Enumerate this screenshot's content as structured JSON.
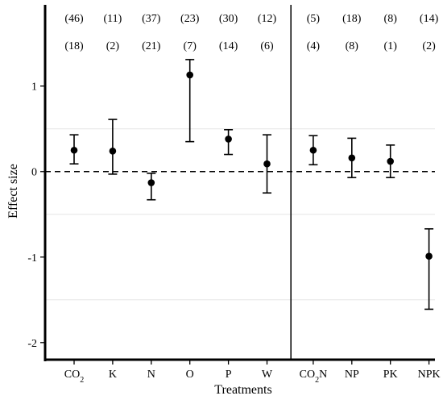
{
  "chart_data": {
    "type": "scatter",
    "subtype": "point-with-error-bars",
    "xlabel": "Treatments",
    "ylabel": "Effect size",
    "ylim": [
      -2.2,
      1.95
    ],
    "yticks": [
      -2,
      -1,
      0,
      1
    ],
    "ytick_labels": [
      "-2",
      "-1",
      "0",
      "1"
    ],
    "reference_line": {
      "y": 0,
      "style": "dashed"
    },
    "grid": {
      "horizontal_minor": true,
      "vertical": false
    },
    "panels": [
      "single-factor",
      "combined"
    ],
    "categories": [
      {
        "label": "CO",
        "sub": "2",
        "suffix": "",
        "panel": 0,
        "estimate": 0.25,
        "lower": 0.09,
        "upper": 0.43,
        "count_top": "(46)",
        "count_bottom": "(18)"
      },
      {
        "label": "K",
        "sub": "",
        "suffix": "",
        "panel": 0,
        "estimate": 0.24,
        "lower": -0.03,
        "upper": 0.61,
        "count_top": "(11)",
        "count_bottom": "(2)"
      },
      {
        "label": "N",
        "sub": "",
        "suffix": "",
        "panel": 0,
        "estimate": -0.13,
        "lower": -0.33,
        "upper": -0.02,
        "count_top": "(37)",
        "count_bottom": "(21)"
      },
      {
        "label": "O",
        "sub": "",
        "suffix": "",
        "panel": 0,
        "estimate": 1.13,
        "lower": 0.35,
        "upper": 1.31,
        "count_top": "(23)",
        "count_bottom": "(7)"
      },
      {
        "label": "P",
        "sub": "",
        "suffix": "",
        "panel": 0,
        "estimate": 0.38,
        "lower": 0.2,
        "upper": 0.49,
        "count_top": "(30)",
        "count_bottom": "(14)"
      },
      {
        "label": "W",
        "sub": "",
        "suffix": "",
        "panel": 0,
        "estimate": 0.09,
        "lower": -0.25,
        "upper": 0.43,
        "count_top": "(12)",
        "count_bottom": "(6)"
      },
      {
        "label": "CO",
        "sub": "2",
        "suffix": "N",
        "panel": 1,
        "estimate": 0.25,
        "lower": 0.08,
        "upper": 0.42,
        "count_top": "(5)",
        "count_bottom": "(4)"
      },
      {
        "label": "NP",
        "sub": "",
        "suffix": "",
        "panel": 1,
        "estimate": 0.16,
        "lower": -0.07,
        "upper": 0.39,
        "count_top": "(18)",
        "count_bottom": "(8)"
      },
      {
        "label": "PK",
        "sub": "",
        "suffix": "",
        "panel": 1,
        "estimate": 0.12,
        "lower": -0.07,
        "upper": 0.31,
        "count_top": "(8)",
        "count_bottom": "(1)"
      },
      {
        "label": "NPK",
        "sub": "",
        "suffix": "",
        "panel": 1,
        "estimate": -0.99,
        "lower": -1.61,
        "upper": -0.67,
        "count_top": "(14)",
        "count_bottom": "(2)"
      }
    ]
  }
}
